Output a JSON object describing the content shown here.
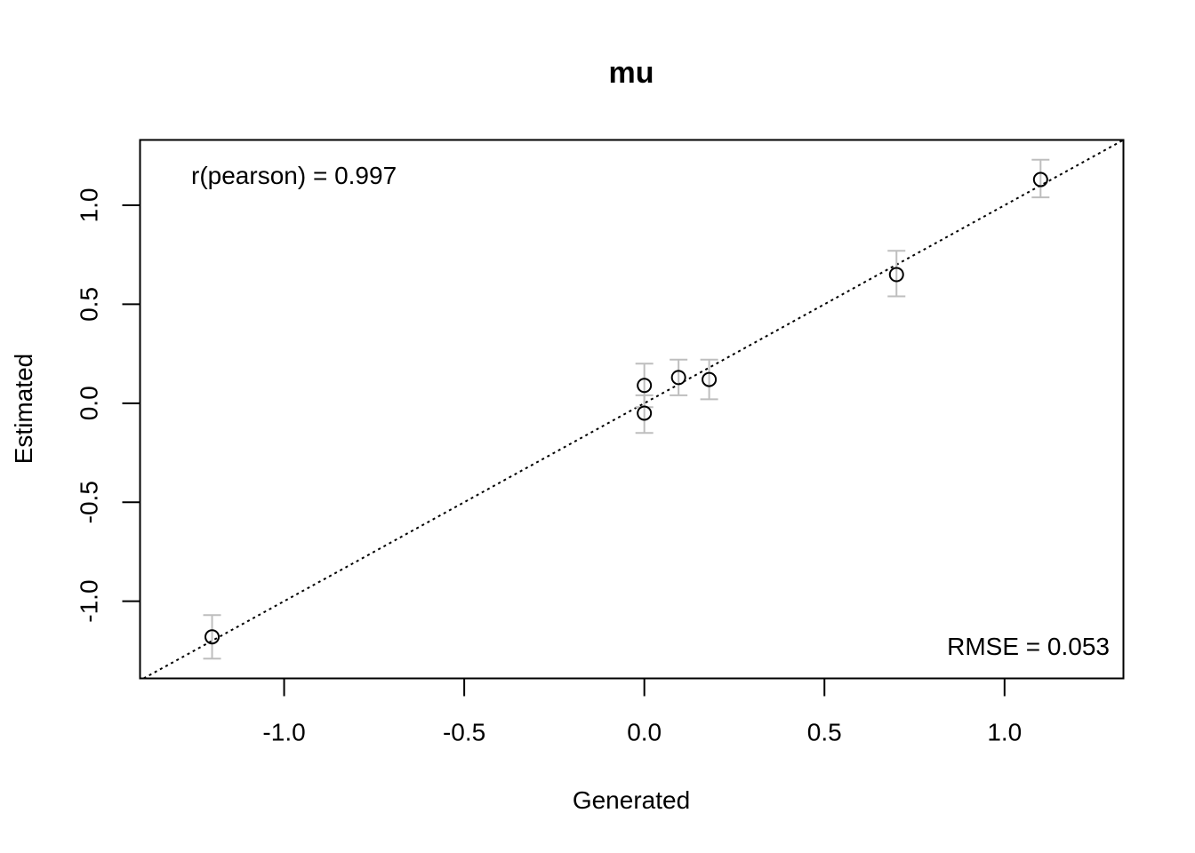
{
  "chart_data": {
    "type": "scatter",
    "title": "mu",
    "xlabel": "Generated",
    "ylabel": "Estimated",
    "xlim": [
      -1.4,
      1.33
    ],
    "ylim": [
      -1.39,
      1.33
    ],
    "x_ticks": [
      -1.0,
      -0.5,
      0.0,
      0.5,
      1.0
    ],
    "x_tick_labels": [
      "-1.0",
      "-0.5",
      "0.0",
      "0.5",
      "1.0"
    ],
    "y_ticks": [
      -1.0,
      -0.5,
      0.0,
      0.5,
      1.0
    ],
    "y_tick_labels": [
      "-1.0",
      "-0.5",
      "0.0",
      "0.5",
      "1.0"
    ],
    "grid": false,
    "reference_line": {
      "slope": 1,
      "intercept": 0,
      "style": "dotted"
    },
    "points": [
      {
        "x": -1.2,
        "y": -1.18,
        "lo": -1.29,
        "hi": -1.07
      },
      {
        "x": 0.0,
        "y": 0.09,
        "lo": -0.02,
        "hi": 0.2
      },
      {
        "x": 0.0,
        "y": -0.05,
        "lo": -0.15,
        "hi": 0.04
      },
      {
        "x": 0.095,
        "y": 0.13,
        "lo": 0.04,
        "hi": 0.22
      },
      {
        "x": 0.18,
        "y": 0.12,
        "lo": 0.02,
        "hi": 0.22
      },
      {
        "x": 0.7,
        "y": 0.65,
        "lo": 0.54,
        "hi": 0.77
      },
      {
        "x": 1.1,
        "y": 1.13,
        "lo": 1.04,
        "hi": 1.23
      }
    ],
    "annotations": {
      "pearson": "r(pearson) =  0.997",
      "rmse": "RMSE =  0.053"
    },
    "colors": {
      "points": "#000000",
      "error_bars": "#bebebe",
      "reference_line": "#000000"
    }
  }
}
